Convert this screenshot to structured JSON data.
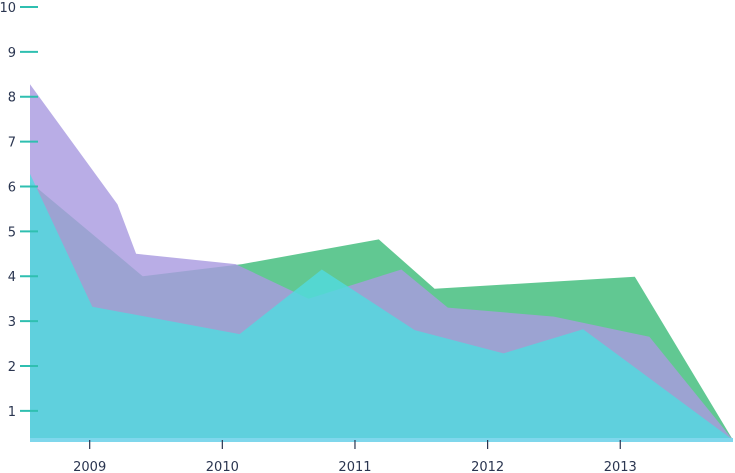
{
  "chart_data": {
    "type": "area",
    "title": "",
    "xlabel": "",
    "ylabel": "",
    "xlim": [
      2008.55,
      2013.85
    ],
    "ylim": [
      0.35,
      10
    ],
    "x_ticks": [
      "2009",
      "2010",
      "2011",
      "2012",
      "2013"
    ],
    "x_tick_values": [
      2009,
      2010,
      2011,
      2012,
      2013
    ],
    "y_ticks": [
      1,
      2,
      3,
      4,
      5,
      6,
      7,
      8,
      9,
      10
    ],
    "grid": false,
    "legend": "none",
    "series": [
      {
        "color": "#5cc68e",
        "points": [
          [
            2008.55,
            6.1
          ],
          [
            2009.4,
            4.0
          ],
          [
            2010.15,
            4.27
          ],
          [
            2011.18,
            4.82
          ],
          [
            2011.6,
            3.72
          ],
          [
            2013.11,
            3.99
          ],
          [
            2013.85,
            0.35
          ]
        ]
      },
      {
        "color": "#a99be0",
        "points": [
          [
            2008.55,
            8.28
          ],
          [
            2009.21,
            5.6
          ],
          [
            2009.35,
            4.5
          ],
          [
            2010.1,
            4.27
          ],
          [
            2010.65,
            3.5
          ],
          [
            2011.35,
            4.15
          ],
          [
            2011.7,
            3.3
          ],
          [
            2012.5,
            3.1
          ],
          [
            2013.22,
            2.65
          ],
          [
            2013.85,
            0.35
          ]
        ]
      },
      {
        "color": "#52dbdf",
        "points": [
          [
            2008.55,
            6.28
          ],
          [
            2009.02,
            3.32
          ],
          [
            2010.13,
            2.71
          ],
          [
            2010.75,
            4.15
          ],
          [
            2011.45,
            2.8
          ],
          [
            2012.12,
            2.28
          ],
          [
            2012.72,
            2.82
          ],
          [
            2013.85,
            0.35
          ]
        ]
      }
    ]
  }
}
